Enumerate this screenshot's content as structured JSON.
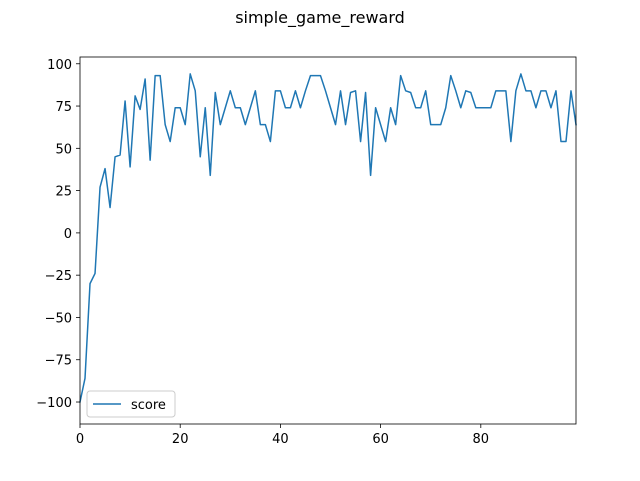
{
  "chart_data": {
    "type": "line",
    "title": "simple_game_reward",
    "xlabel": "",
    "ylabel": "",
    "xlim": [
      0,
      99
    ],
    "ylim": [
      -113,
      104
    ],
    "xticks": [
      0,
      20,
      40,
      60,
      80
    ],
    "yticks": [
      -100,
      -75,
      -50,
      -25,
      0,
      25,
      50,
      75,
      100
    ],
    "xtick_labels": [
      "0",
      "20",
      "40",
      "60",
      "80"
    ],
    "ytick_labels": [
      "−100",
      "−75",
      "−50",
      "−25",
      "0",
      "25",
      "50",
      "75",
      "100"
    ],
    "grid": false,
    "legend_position": "lower left",
    "series": [
      {
        "name": "score",
        "color": "#1f77b4",
        "x": [
          0,
          1,
          2,
          3,
          4,
          5,
          6,
          7,
          8,
          9,
          10,
          11,
          12,
          13,
          14,
          15,
          16,
          17,
          18,
          19,
          20,
          21,
          22,
          23,
          24,
          25,
          26,
          27,
          28,
          29,
          30,
          31,
          32,
          33,
          34,
          35,
          36,
          37,
          38,
          39,
          40,
          41,
          42,
          43,
          44,
          45,
          46,
          47,
          48,
          49,
          50,
          51,
          52,
          53,
          54,
          55,
          56,
          57,
          58,
          59,
          60,
          61,
          62,
          63,
          64,
          65,
          66,
          67,
          68,
          69,
          70,
          71,
          72,
          73,
          74,
          75,
          76,
          77,
          78,
          79,
          80,
          81,
          82,
          83,
          84,
          85,
          86,
          87,
          88,
          89,
          90,
          91,
          92,
          93,
          94,
          95,
          96,
          97,
          98,
          99
        ],
        "values": [
          -100,
          -86,
          -30,
          -24,
          27,
          38,
          15,
          45,
          46,
          78,
          39,
          81,
          73,
          91,
          43,
          93,
          93,
          64,
          54,
          74,
          74,
          64,
          94,
          84,
          45,
          74,
          34,
          83,
          64,
          74,
          84,
          74,
          74,
          64,
          74,
          84,
          64,
          64,
          54,
          84,
          84,
          74,
          74,
          84,
          74,
          84,
          93,
          93,
          93,
          84,
          74,
          64,
          84,
          64,
          83,
          84,
          54,
          83,
          34,
          74,
          64,
          54,
          74,
          64,
          93,
          84,
          83,
          74,
          74,
          84,
          64,
          64,
          64,
          74,
          93,
          84,
          74,
          84,
          83,
          74,
          74,
          74,
          74,
          84,
          84,
          84,
          54,
          84,
          94,
          84,
          84,
          74,
          84,
          84,
          74,
          84,
          54,
          54,
          84,
          64
        ]
      }
    ]
  }
}
